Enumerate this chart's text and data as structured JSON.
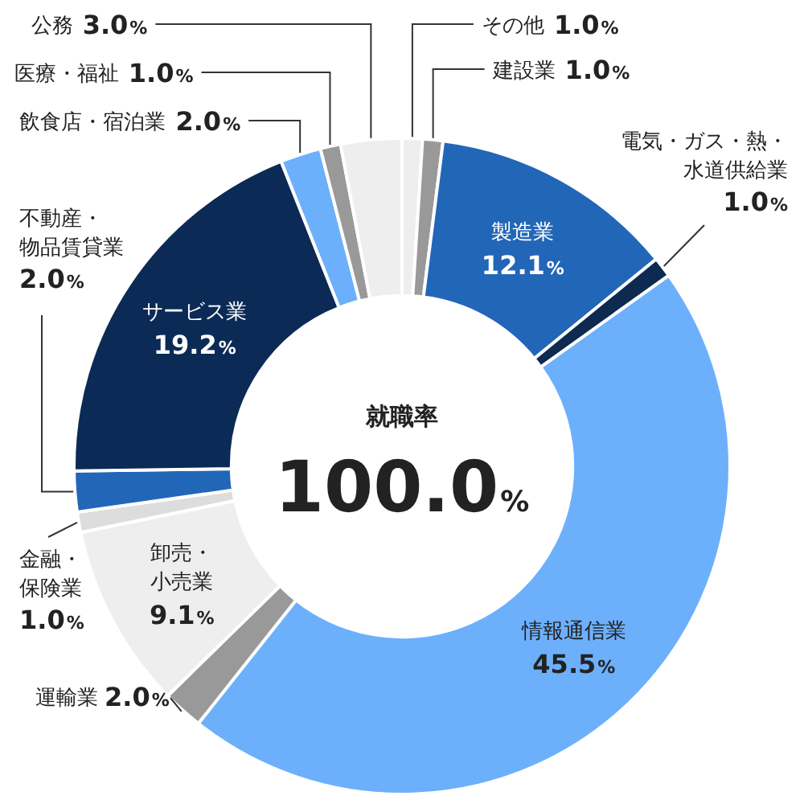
{
  "chart_data": {
    "type": "donut",
    "title": "就職率",
    "annotations": [
      "100.0%"
    ],
    "categories": [
      "その他",
      "建設業",
      "製造業",
      "電気・ガス・熱・水道供給業",
      "情報通信業",
      "運輸業",
      "卸売・小売業",
      "金融・保険業",
      "不動産・物品賃貸業",
      "サービス業",
      "飲食店・宿泊業",
      "医療・福祉",
      "公務"
    ],
    "values": [
      1.0,
      1.0,
      12.1,
      1.0,
      45.5,
      2.0,
      9.1,
      1.0,
      2.0,
      19.2,
      2.0,
      1.0,
      3.0
    ],
    "value_labels": [
      "1.0%",
      "1.0%",
      "12.1%",
      "1.0%",
      "45.5%",
      "2.0%",
      "9.1%",
      "1.0%",
      "2.0%",
      "19.2%",
      "2.0%",
      "1.0%",
      "3.0%"
    ],
    "colors": [
      "#eeeeee",
      "#999999",
      "#2266b8",
      "#0d2a50",
      "#6cb0fc",
      "#999999",
      "#eeeeee",
      "#dddddd",
      "#2266b8",
      "#0b2a55",
      "#6cb0fc",
      "#999999",
      "#eeeeee"
    ]
  }
}
